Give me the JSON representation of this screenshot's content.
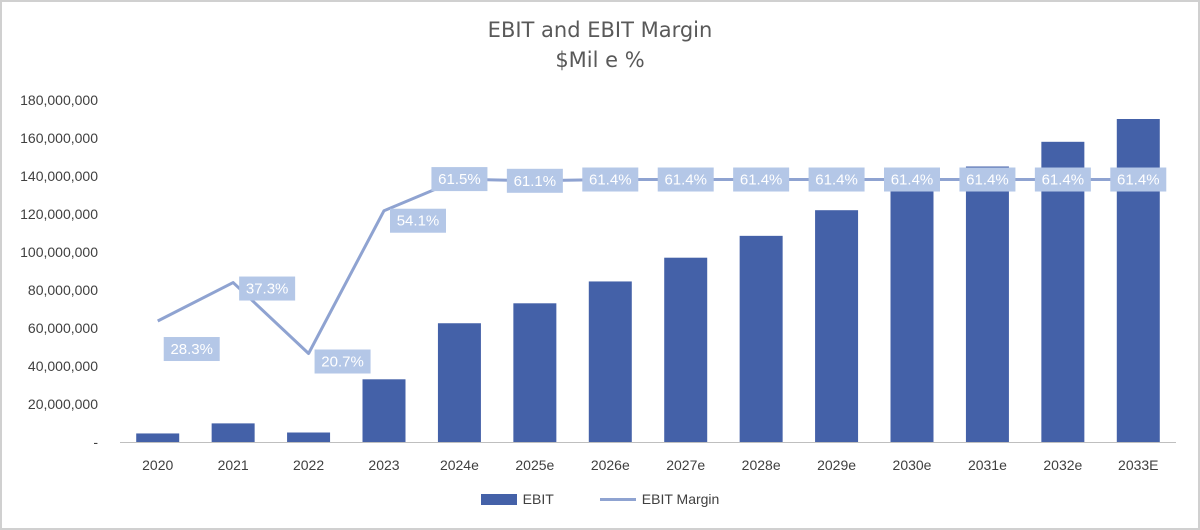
{
  "chart_data": {
    "type": "bar+line",
    "title": "EBIT and EBIT Margin",
    "subtitle": "$Mil e %",
    "categories": [
      "2020",
      "2021",
      "2022",
      "2023",
      "2024e",
      "2025e",
      "2026e",
      "2027e",
      "2028e",
      "2029e",
      "2030e",
      "2031e",
      "2032e",
      "2033E"
    ],
    "series": [
      {
        "name": "EBIT",
        "kind": "bar",
        "color": "#4461a8",
        "values": [
          4500000,
          9800000,
          5000000,
          33000000,
          62500000,
          73000000,
          84500000,
          97000000,
          108500000,
          122000000,
          133000000,
          145000000,
          158000000,
          170000000
        ]
      },
      {
        "name": "EBIT Margin",
        "kind": "line",
        "color": "#8fa3d1",
        "labels": [
          "28.3%",
          "37.3%",
          "20.7%",
          "54.1%",
          "61.5%",
          "61.1%",
          "61.4%",
          "61.4%",
          "61.4%",
          "61.4%",
          "61.4%",
          "61.4%",
          "61.4%",
          "61.4%"
        ],
        "values": [
          0.283,
          0.373,
          0.207,
          0.541,
          0.615,
          0.611,
          0.614,
          0.614,
          0.614,
          0.614,
          0.614,
          0.614,
          0.614,
          0.614
        ]
      }
    ],
    "yticks": [
      "-",
      "20,000,000",
      "40,000,000",
      "60,000,000",
      "80,000,000",
      "100,000,000",
      "120,000,000",
      "140,000,000",
      "160,000,000",
      "180,000,000"
    ],
    "ylim": [
      0,
      180000000
    ],
    "grid": false,
    "legend_position": "bottom"
  }
}
